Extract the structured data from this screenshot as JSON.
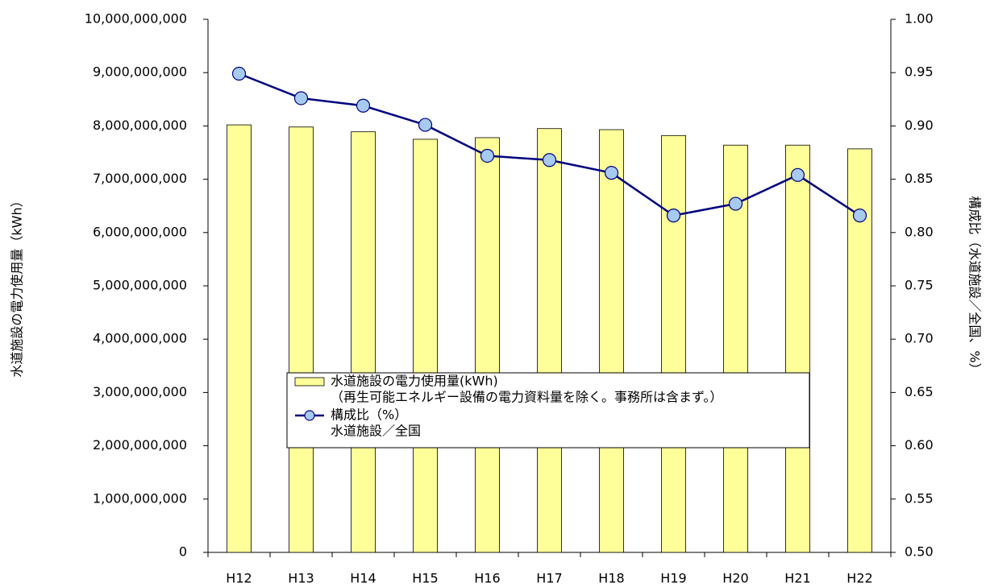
{
  "chart_data": {
    "type": "bar_line",
    "y_label": "水道施設の電力使用量（kWh）",
    "y2_label": "構成比（水道施設／全国、%）",
    "categories": [
      "H12",
      "H13",
      "H14",
      "H15",
      "H16",
      "H17",
      "H18",
      "H19",
      "H20",
      "H21",
      "H22"
    ],
    "series": [
      {
        "name": "水道施設の電力使用量(kWh)",
        "note": "（再生可能エネルギー設備の電力資料量を除く。事務所は含まず。）",
        "type": "bar",
        "color": "#ffff99",
        "values": [
          8020000000,
          7980000000,
          7890000000,
          7750000000,
          7780000000,
          7950000000,
          7930000000,
          7820000000,
          7640000000,
          7640000000,
          7570000000
        ]
      },
      {
        "name": "構成比（%）",
        "note": "水道施設／全国",
        "type": "line",
        "axis": "y2",
        "color": "#000080",
        "marker_color": "#a6caf0",
        "values": [
          0.949,
          0.926,
          0.919,
          0.901,
          0.872,
          0.868,
          0.856,
          0.816,
          0.827,
          0.854,
          0.816
        ]
      }
    ],
    "ylim": [
      0,
      10000000000
    ],
    "yticks": [
      0,
      {
        "value": 1000000000,
        "label": "1,000,000,000"
      },
      {
        "value": 2000000000,
        "label": "2,000,000,000"
      },
      {
        "value": 3000000000,
        "label": "3,000,000,000"
      },
      {
        "value": 4000000000,
        "label": "4,000,000,000"
      },
      {
        "value": 5000000000,
        "label": "5,000,000,000"
      },
      {
        "value": 6000000000,
        "label": "6,000,000,000"
      },
      {
        "value": 7000000000,
        "label": "7,000,000,000"
      },
      {
        "value": 8000000000,
        "label": "8,000,000,000"
      },
      {
        "value": 9000000000,
        "label": "9,000,000,000"
      },
      {
        "value": 10000000000,
        "label": "10,000,000,000"
      }
    ],
    "y2lim": [
      0.5,
      1.0
    ],
    "y2ticks": [
      {
        "value": 0.5,
        "label": "0.50"
      },
      0.55,
      {
        "value": 0.6,
        "label": "0.60"
      },
      0.65,
      {
        "value": 0.7,
        "label": "0.70"
      },
      0.75,
      {
        "value": 0.8,
        "label": "0.80"
      },
      0.85,
      {
        "value": 0.9,
        "label": "0.90"
      },
      0.95,
      {
        "value": 1.0,
        "label": "1.00"
      }
    ],
    "grid": false
  }
}
